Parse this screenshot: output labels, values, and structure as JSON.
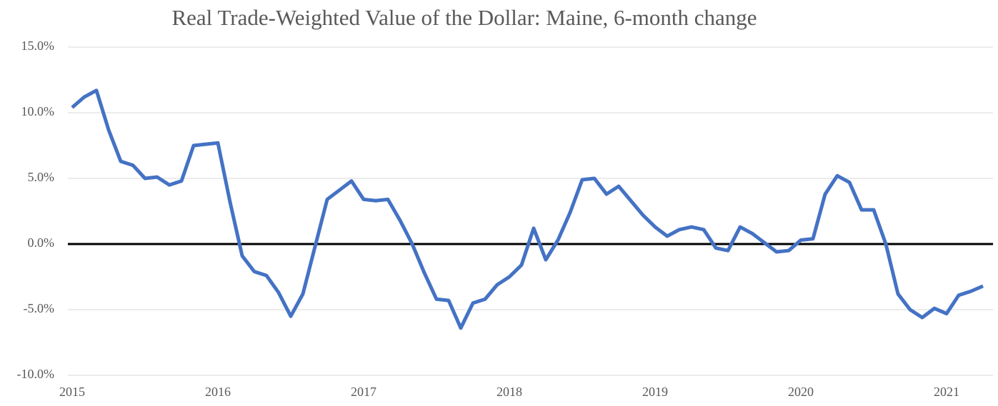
{
  "chart_data": {
    "type": "line",
    "title": "Real Trade-Weighted Value of  the Dollar: Maine, 6-month change",
    "categories": [
      "2015",
      null,
      null,
      null,
      null,
      null,
      null,
      null,
      null,
      null,
      null,
      null,
      "2016",
      null,
      null,
      null,
      null,
      null,
      null,
      null,
      null,
      null,
      null,
      null,
      "2017",
      null,
      null,
      null,
      null,
      null,
      null,
      null,
      null,
      null,
      null,
      null,
      "2018",
      null,
      null,
      null,
      null,
      null,
      null,
      null,
      null,
      null,
      null,
      null,
      "2019",
      null,
      null,
      null,
      null,
      null,
      null,
      null,
      null,
      null,
      null,
      null,
      "2020",
      null,
      null,
      null,
      null,
      null,
      null,
      null,
      null,
      null,
      null,
      null,
      "2021",
      null,
      null,
      null
    ],
    "series": [
      {
        "name": "Maine",
        "color": "#4472c4",
        "values": [
          10.4,
          11.2,
          11.7,
          8.7,
          6.3,
          6.0,
          5.0,
          5.1,
          4.5,
          4.8,
          7.5,
          7.6,
          7.7,
          3.2,
          -0.9,
          -2.1,
          -2.4,
          -3.7,
          -5.5,
          -3.8,
          -0.2,
          3.4,
          4.1,
          4.8,
          3.4,
          3.3,
          3.4,
          1.8,
          0.0,
          -2.2,
          -4.2,
          -4.3,
          -6.4,
          -4.5,
          -4.2,
          -3.1,
          -2.5,
          -1.6,
          1.2,
          -1.2,
          0.3,
          2.4,
          4.9,
          5.0,
          3.8,
          4.4,
          3.3,
          2.2,
          1.3,
          0.6,
          1.1,
          1.3,
          1.1,
          -0.3,
          -0.5,
          1.3,
          0.8,
          0.1,
          -0.6,
          -0.5,
          0.3,
          0.4,
          3.8,
          5.2,
          4.7,
          2.6,
          2.6,
          0.0,
          -3.8,
          -5.0,
          -5.6,
          -4.9,
          -5.3,
          -3.9,
          -3.6,
          -3.2
        ]
      }
    ],
    "ylim": [
      -10,
      15
    ],
    "yticks": [
      {
        "value": -10,
        "label": "-10.0%"
      },
      {
        "value": -5,
        "label": "-5.0%"
      },
      {
        "value": 0,
        "label": "0.0%"
      },
      {
        "value": 5,
        "label": "5.0%"
      },
      {
        "value": 10,
        "label": "10.0%"
      },
      {
        "value": 15,
        "label": "15.0%"
      }
    ],
    "grid": true
  }
}
